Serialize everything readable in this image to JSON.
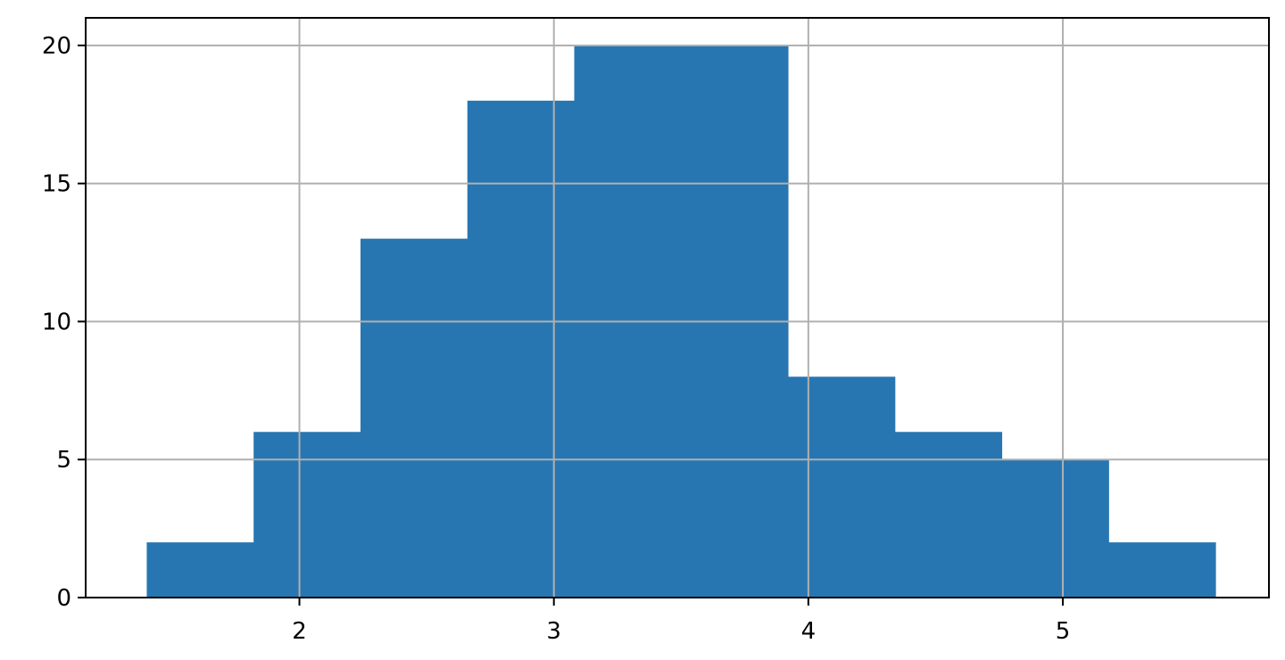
{
  "chart_data": {
    "type": "bar",
    "subtype": "histogram",
    "title": "",
    "xlabel": "",
    "ylabel": "",
    "bin_edges": [
      1.4,
      1.82,
      2.24,
      2.66,
      3.08,
      3.5,
      3.92,
      4.34,
      4.76,
      5.18,
      5.6
    ],
    "values": [
      2,
      6,
      13,
      18,
      20,
      20,
      8,
      6,
      5,
      2
    ],
    "xlim": [
      1.16,
      5.81
    ],
    "ylim": [
      0,
      21
    ],
    "xticks": [
      2,
      3,
      4,
      5
    ],
    "xtick_labels": [
      "2",
      "3",
      "4",
      "5"
    ],
    "yticks": [
      0,
      5,
      10,
      15,
      20
    ],
    "ytick_labels": [
      "0",
      "5",
      "10",
      "15",
      "20"
    ],
    "grid": true,
    "legend": "none",
    "colors": {
      "bar": "#2776b2",
      "grid": "#b0b0b0",
      "axes": "#000000"
    }
  }
}
